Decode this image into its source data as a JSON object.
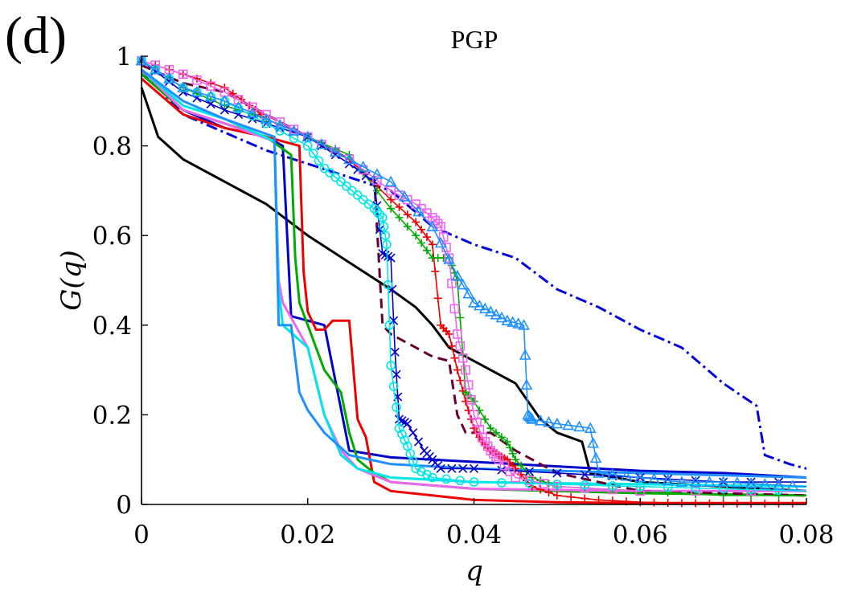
{
  "panel_label": "(d)",
  "chart_data": {
    "type": "line",
    "title": "PGP",
    "xlabel": "q",
    "ylabel": "G(q)",
    "xlim": [
      0,
      0.08
    ],
    "ylim": [
      0,
      1
    ],
    "xticks": [
      0,
      0.02,
      0.04,
      0.06,
      0.08
    ],
    "xtick_labels": [
      "0",
      "0.02",
      "0.04",
      "0.06",
      "0.08"
    ],
    "yticks": [
      0,
      0.2,
      0.4,
      0.6,
      0.8,
      1
    ],
    "ytick_labels": [
      "0",
      "0.2",
      "0.4",
      "0.6",
      "0.8",
      "1"
    ],
    "grid": false,
    "series": [
      {
        "color": "#000000",
        "style": "solid",
        "marker": "",
        "x": [
          0,
          0.002,
          0.005,
          0.01,
          0.015,
          0.02,
          0.025,
          0.03,
          0.033,
          0.035,
          0.037,
          0.04,
          0.042,
          0.045,
          0.048,
          0.05,
          0.053,
          0.054,
          0.06,
          0.07,
          0.08
        ],
        "y": [
          0.93,
          0.82,
          0.77,
          0.72,
          0.67,
          0.6,
          0.54,
          0.48,
          0.44,
          0.4,
          0.35,
          0.32,
          0.3,
          0.27,
          0.19,
          0.16,
          0.14,
          0.07,
          0.05,
          0.04,
          0.03
        ]
      },
      {
        "color": "#0000dd",
        "style": "dashdot",
        "marker": "",
        "x": [
          0,
          0.005,
          0.01,
          0.015,
          0.02,
          0.025,
          0.03,
          0.035,
          0.04,
          0.045,
          0.05,
          0.055,
          0.06,
          0.065,
          0.07,
          0.074,
          0.075,
          0.078,
          0.08
        ],
        "y": [
          0.97,
          0.87,
          0.83,
          0.79,
          0.76,
          0.73,
          0.7,
          0.62,
          0.58,
          0.55,
          0.48,
          0.44,
          0.39,
          0.35,
          0.27,
          0.22,
          0.11,
          0.09,
          0.08
        ]
      },
      {
        "color": "#0000cc",
        "style": "solid",
        "marker": "",
        "x": [
          0,
          0.005,
          0.01,
          0.015,
          0.017,
          0.018,
          0.022,
          0.025,
          0.03,
          0.04,
          0.05,
          0.06,
          0.07,
          0.08
        ],
        "y": [
          0.96,
          0.88,
          0.84,
          0.82,
          0.8,
          0.42,
          0.4,
          0.12,
          0.105,
          0.095,
          0.085,
          0.075,
          0.07,
          0.06
        ]
      },
      {
        "color": "#ee0000",
        "style": "solid",
        "marker": "",
        "x": [
          0,
          0.005,
          0.01,
          0.015,
          0.019,
          0.0195,
          0.02,
          0.021,
          0.022,
          0.023,
          0.025,
          0.026,
          0.027,
          0.028,
          0.03,
          0.035,
          0.04,
          0.05,
          0.06,
          0.08
        ],
        "y": [
          0.95,
          0.87,
          0.84,
          0.82,
          0.8,
          0.52,
          0.43,
          0.39,
          0.39,
          0.41,
          0.41,
          0.19,
          0.15,
          0.05,
          0.03,
          0.02,
          0.01,
          0.005,
          0.003,
          0.003
        ]
      },
      {
        "color": "#00aa00",
        "style": "solid",
        "marker": "",
        "x": [
          0,
          0.005,
          0.01,
          0.015,
          0.018,
          0.0185,
          0.019,
          0.02,
          0.022,
          0.024,
          0.025,
          0.026,
          0.028,
          0.03,
          0.04,
          0.06,
          0.08
        ],
        "y": [
          0.96,
          0.88,
          0.85,
          0.82,
          0.78,
          0.55,
          0.45,
          0.4,
          0.3,
          0.25,
          0.16,
          0.1,
          0.07,
          0.05,
          0.035,
          0.025,
          0.02
        ]
      },
      {
        "color": "#ee66ee",
        "style": "solid",
        "marker": "",
        "x": [
          0,
          0.005,
          0.01,
          0.016,
          0.0165,
          0.017,
          0.02,
          0.022,
          0.024,
          0.026,
          0.03,
          0.04,
          0.06,
          0.08
        ],
        "y": [
          0.97,
          0.88,
          0.85,
          0.81,
          0.5,
          0.45,
          0.35,
          0.2,
          0.12,
          0.08,
          0.05,
          0.035,
          0.03,
          0.03
        ]
      },
      {
        "color": "#00e5e5",
        "style": "solid",
        "marker": "",
        "x": [
          0,
          0.005,
          0.01,
          0.016,
          0.0165,
          0.017,
          0.02,
          0.022,
          0.024,
          0.026,
          0.03,
          0.04,
          0.06,
          0.08
        ],
        "y": [
          0.97,
          0.89,
          0.86,
          0.81,
          0.48,
          0.4,
          0.35,
          0.2,
          0.11,
          0.08,
          0.06,
          0.05,
          0.045,
          0.04
        ]
      },
      {
        "color": "#1e90ff",
        "style": "solid",
        "marker": "",
        "x": [
          0,
          0.005,
          0.01,
          0.016,
          0.0165,
          0.018,
          0.019,
          0.02,
          0.022,
          0.025,
          0.03,
          0.04,
          0.06,
          0.08
        ],
        "y": [
          0.97,
          0.9,
          0.86,
          0.82,
          0.4,
          0.4,
          0.25,
          0.21,
          0.16,
          0.11,
          0.09,
          0.08,
          0.07,
          0.06
        ]
      },
      {
        "color": "#660033",
        "style": "dashed",
        "marker": "",
        "x": [
          0,
          0.005,
          0.01,
          0.015,
          0.02,
          0.025,
          0.027,
          0.028,
          0.029,
          0.03,
          0.032,
          0.035,
          0.037,
          0.038,
          0.039,
          0.042,
          0.045,
          0.05,
          0.055,
          0.06,
          0.08
        ],
        "y": [
          0.98,
          0.94,
          0.92,
          0.87,
          0.82,
          0.77,
          0.74,
          0.73,
          0.4,
          0.38,
          0.36,
          0.33,
          0.32,
          0.2,
          0.16,
          0.16,
          0.12,
          0.07,
          0.05,
          0.03,
          0.02
        ]
      },
      {
        "color": "#ee0000",
        "style": "solid",
        "marker": "+",
        "x": [
          0,
          0.005,
          0.01,
          0.013,
          0.015,
          0.02,
          0.025,
          0.03,
          0.033,
          0.035,
          0.036,
          0.037,
          0.038,
          0.039,
          0.04,
          0.041,
          0.042,
          0.043,
          0.044,
          0.045,
          0.047,
          0.05,
          0.055,
          0.06,
          0.065,
          0.07,
          0.075,
          0.08
        ],
        "y": [
          0.99,
          0.96,
          0.93,
          0.89,
          0.86,
          0.82,
          0.77,
          0.68,
          0.63,
          0.58,
          0.4,
          0.38,
          0.3,
          0.23,
          0.17,
          0.14,
          0.12,
          0.11,
          0.1,
          0.08,
          0.04,
          0.02,
          0.01,
          0.005,
          0.003,
          0.002,
          0.002,
          0.002
        ]
      },
      {
        "color": "#00aa00",
        "style": "solid",
        "marker": "+",
        "x": [
          0,
          0.005,
          0.01,
          0.015,
          0.02,
          0.025,
          0.03,
          0.033,
          0.035,
          0.037,
          0.038,
          0.039,
          0.04,
          0.042,
          0.044,
          0.045,
          0.047,
          0.05,
          0.06,
          0.07,
          0.08
        ],
        "y": [
          0.99,
          0.93,
          0.89,
          0.86,
          0.82,
          0.78,
          0.66,
          0.6,
          0.55,
          0.55,
          0.5,
          0.25,
          0.23,
          0.17,
          0.14,
          0.1,
          0.06,
          0.04,
          0.03,
          0.02,
          0.02
        ]
      },
      {
        "color": "#0000cc",
        "style": "solid",
        "marker": "x",
        "x": [
          0,
          0.005,
          0.01,
          0.015,
          0.02,
          0.025,
          0.028,
          0.029,
          0.03,
          0.0305,
          0.031,
          0.032,
          0.034,
          0.035,
          0.036,
          0.04,
          0.05,
          0.06,
          0.07,
          0.08
        ],
        "y": [
          0.99,
          0.92,
          0.88,
          0.85,
          0.82,
          0.76,
          0.72,
          0.56,
          0.55,
          0.34,
          0.19,
          0.18,
          0.12,
          0.1,
          0.08,
          0.08,
          0.07,
          0.06,
          0.05,
          0.05
        ]
      },
      {
        "color": "#ee66ee",
        "style": "solid",
        "marker": "square",
        "x": [
          0,
          0.005,
          0.01,
          0.015,
          0.02,
          0.025,
          0.03,
          0.033,
          0.035,
          0.036,
          0.037,
          0.038,
          0.039,
          0.04,
          0.041,
          0.042,
          0.043,
          0.045,
          0.05,
          0.06,
          0.08
        ],
        "y": [
          0.99,
          0.96,
          0.92,
          0.87,
          0.82,
          0.77,
          0.7,
          0.67,
          0.64,
          0.62,
          0.55,
          0.38,
          0.3,
          0.2,
          0.15,
          0.12,
          0.1,
          0.06,
          0.04,
          0.03,
          0.03
        ]
      },
      {
        "color": "#00e5e5",
        "style": "solid",
        "marker": "circle",
        "x": [
          0,
          0.005,
          0.01,
          0.015,
          0.02,
          0.022,
          0.024,
          0.026,
          0.028,
          0.029,
          0.0295,
          0.03,
          0.031,
          0.032,
          0.033,
          0.035,
          0.04,
          0.05,
          0.06,
          0.07,
          0.08
        ],
        "y": [
          0.99,
          0.93,
          0.9,
          0.85,
          0.8,
          0.75,
          0.72,
          0.69,
          0.66,
          0.64,
          0.58,
          0.31,
          0.17,
          0.13,
          0.08,
          0.06,
          0.05,
          0.045,
          0.04,
          0.035,
          0.03
        ]
      },
      {
        "color": "#1e90ff",
        "style": "solid",
        "marker": "triangle",
        "x": [
          0,
          0.005,
          0.01,
          0.015,
          0.02,
          0.025,
          0.03,
          0.035,
          0.038,
          0.04,
          0.042,
          0.044,
          0.046,
          0.0465,
          0.047,
          0.05,
          0.054,
          0.055,
          0.06,
          0.065,
          0.07,
          0.075,
          0.08
        ],
        "y": [
          0.99,
          0.93,
          0.9,
          0.86,
          0.82,
          0.77,
          0.72,
          0.62,
          0.51,
          0.45,
          0.43,
          0.41,
          0.4,
          0.2,
          0.19,
          0.18,
          0.17,
          0.07,
          0.06,
          0.05,
          0.05,
          0.045,
          0.04
        ]
      }
    ]
  }
}
